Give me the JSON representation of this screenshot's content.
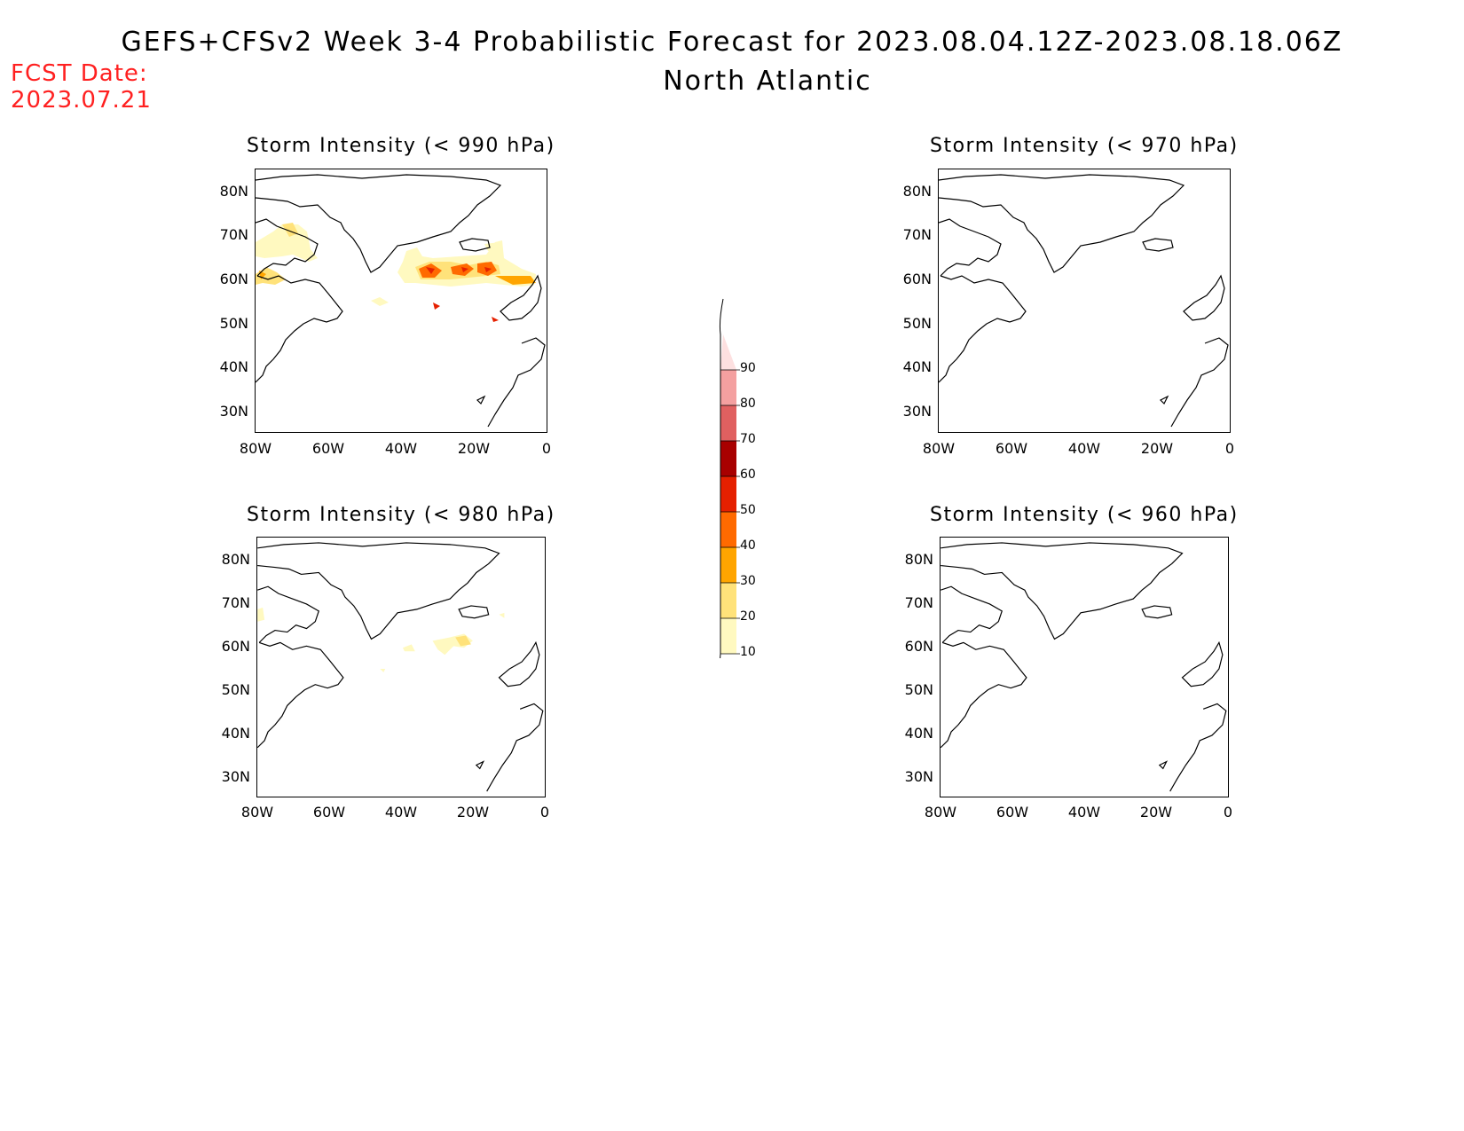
{
  "header": {
    "title": "GEFS+CFSv2 Week 3-4 Probabilistic Forecast for 2023.08.04.12Z-2023.08.18.06Z",
    "subtitle": "North Atlantic",
    "fcst_label": "FCST Date:",
    "fcst_date": "2023.07.21"
  },
  "panels": [
    {
      "title": "Storm Intensity (< 990 hPa)"
    },
    {
      "title": "Storm Intensity (< 970 hPa)"
    },
    {
      "title": "Storm Intensity (< 980 hPa)"
    },
    {
      "title": "Storm Intensity (< 960 hPa)"
    }
  ],
  "axes": {
    "lat_ticks": [
      "80N",
      "70N",
      "60N",
      "50N",
      "40N",
      "30N"
    ],
    "lon_ticks": [
      "80W",
      "60W",
      "40W",
      "20W",
      "0"
    ]
  },
  "colorbar": {
    "levels": [
      "10",
      "20",
      "30",
      "40",
      "50",
      "60",
      "70",
      "80",
      "90"
    ],
    "colors": [
      "#fff9c0",
      "#ffe27a",
      "#ffa500",
      "#ff6a00",
      "#e52000",
      "#a80000",
      "#e06060",
      "#f4a0a0",
      "#fde0e0"
    ]
  }
}
